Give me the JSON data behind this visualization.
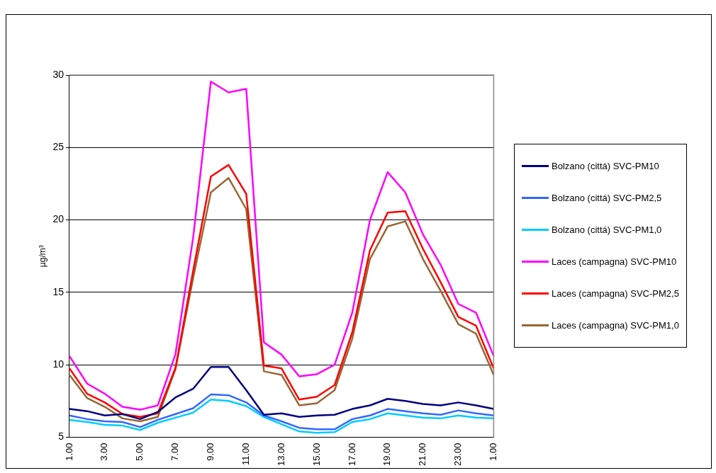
{
  "chart_data": {
    "type": "line",
    "ylabel": "µg/m³",
    "categories": [
      "1.00",
      null,
      "3.00",
      null,
      "5.00",
      null,
      "7.00",
      null,
      "9.00",
      null,
      "11.00",
      null,
      "13.00",
      null,
      "15.00",
      null,
      "17.00",
      null,
      "19.00",
      null,
      "21.00",
      null,
      "23.00",
      null,
      "1.00"
    ],
    "series": [
      {
        "name": "Bolzano (cittá) SVC-PM10",
        "color": "#000080",
        "values": [
          6.95,
          6.8,
          6.5,
          6.6,
          6.25,
          6.75,
          7.75,
          8.35,
          9.85,
          9.85,
          8.25,
          6.55,
          6.65,
          6.4,
          6.5,
          6.55,
          6.95,
          7.2,
          7.65,
          7.5,
          7.3,
          7.2,
          7.4,
          7.2,
          6.95
        ]
      },
      {
        "name": "Bolzano (cittá) SVC-PM2,5",
        "color": "#3366ff",
        "values": [
          6.5,
          6.25,
          6.1,
          6.05,
          5.7,
          6.2,
          6.6,
          7.0,
          7.95,
          7.9,
          7.4,
          6.5,
          6.1,
          5.65,
          5.55,
          5.55,
          6.25,
          6.5,
          6.95,
          6.8,
          6.65,
          6.55,
          6.85,
          6.65,
          6.5
        ]
      },
      {
        "name": "Bolzano (cittá) SVC-PM1,0",
        "color": "#00ccff",
        "values": [
          6.2,
          6.05,
          5.85,
          5.8,
          5.5,
          6.0,
          6.35,
          6.7,
          7.6,
          7.5,
          7.15,
          6.4,
          5.9,
          5.4,
          5.3,
          5.35,
          6.05,
          6.25,
          6.65,
          6.5,
          6.35,
          6.3,
          6.5,
          6.35,
          6.3
        ]
      },
      {
        "name": "Laces (campagna) SVC-PM10",
        "color": "#ff00ff",
        "values": [
          10.6,
          8.7,
          8.0,
          7.1,
          6.9,
          7.2,
          10.75,
          18.8,
          29.55,
          28.8,
          29.05,
          11.55,
          10.7,
          9.2,
          9.35,
          10.0,
          13.6,
          20.0,
          23.3,
          21.9,
          19.0,
          16.9,
          14.2,
          13.6,
          10.6
        ]
      },
      {
        "name": "Laces (campagna) SVC-PM2,5",
        "color": "#ff0000",
        "values": [
          9.75,
          8.0,
          7.4,
          6.6,
          6.4,
          6.65,
          9.8,
          16.5,
          23.0,
          23.8,
          21.8,
          9.95,
          9.75,
          7.6,
          7.8,
          8.6,
          12.25,
          17.9,
          20.5,
          20.6,
          18.0,
          15.7,
          13.3,
          12.7,
          9.75
        ]
      },
      {
        "name": "Laces (campagna) SVC-PM1,0",
        "color": "#996633",
        "values": [
          9.3,
          7.7,
          7.1,
          6.3,
          6.1,
          6.4,
          9.7,
          16.0,
          21.9,
          22.9,
          20.75,
          9.55,
          9.3,
          7.2,
          7.35,
          8.25,
          11.8,
          17.3,
          19.55,
          19.9,
          17.3,
          15.1,
          12.8,
          12.15,
          9.3
        ]
      }
    ],
    "ylim": [
      5,
      30
    ],
    "yticks": [
      5,
      10,
      15,
      20,
      25,
      30
    ],
    "grid": "y",
    "legend": "right",
    "marker": "none",
    "line_style": "solid"
  }
}
